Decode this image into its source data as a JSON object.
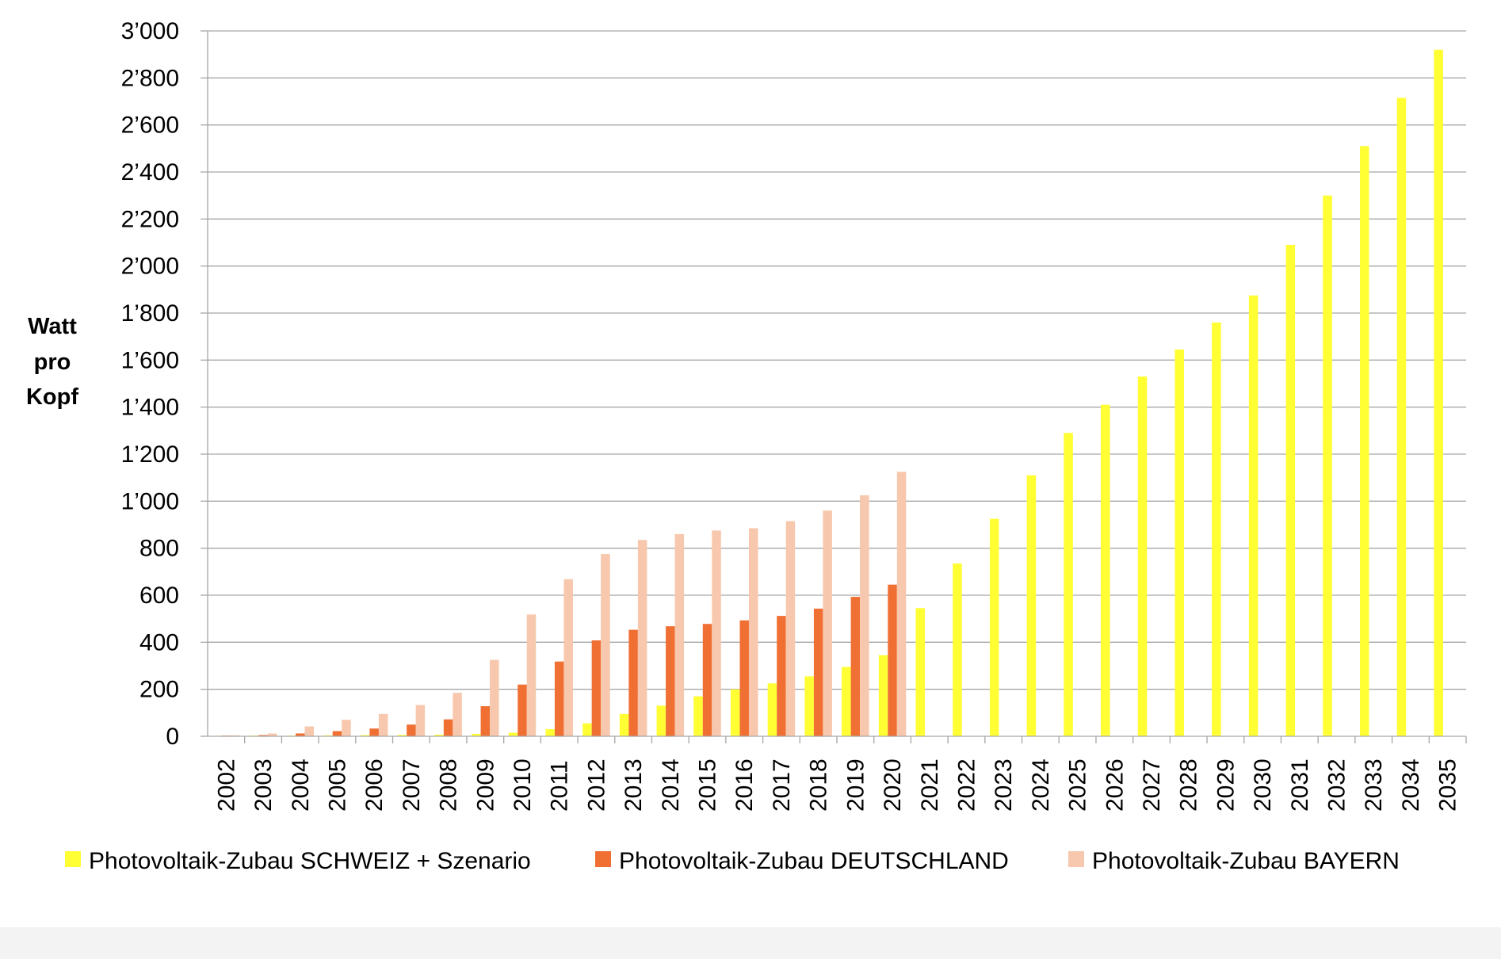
{
  "chart_data": {
    "type": "bar",
    "ylabel": [
      "Watt",
      "pro",
      "Kopf"
    ],
    "ylim": [
      0,
      3000
    ],
    "yticks": [
      0,
      200,
      400,
      600,
      800,
      1000,
      1200,
      1400,
      1600,
      1800,
      2000,
      2200,
      2400,
      2600,
      2800,
      3000
    ],
    "ytick_labels": [
      "0",
      "200",
      "400",
      "600",
      "800",
      "1’000",
      "1’200",
      "1’400",
      "1’600",
      "1’800",
      "2’000",
      "2’200",
      "2’400",
      "2’600",
      "2’800",
      "3’000"
    ],
    "grid": true,
    "legend": "bottom",
    "categories": [
      "2002",
      "2003",
      "2004",
      "2005",
      "2006",
      "2007",
      "2008",
      "2009",
      "2010",
      "2011",
      "2012",
      "2013",
      "2014",
      "2015",
      "2016",
      "2017",
      "2018",
      "2019",
      "2020",
      "2021",
      "2022",
      "2023",
      "2024",
      "2025",
      "2026",
      "2027",
      "2028",
      "2029",
      "2030",
      "2031",
      "2032",
      "2033",
      "2034",
      "2035"
    ],
    "series": [
      {
        "name": "Photovoltaik-Zubau SCHWEIZ + Szenario",
        "color": "#ffff33",
        "values": [
          2,
          3,
          3,
          4,
          5,
          6,
          7,
          10,
          15,
          30,
          55,
          95,
          130,
          170,
          200,
          225,
          255,
          295,
          345,
          545,
          735,
          925,
          1110,
          1290,
          1410,
          1530,
          1645,
          1760,
          1875,
          2090,
          2300,
          2510,
          2715,
          2920
        ]
      },
      {
        "name": "Photovoltaik-Zubau DEUTSCHLAND",
        "color": "#f07034",
        "values": [
          3,
          5,
          12,
          22,
          33,
          50,
          72,
          128,
          220,
          318,
          408,
          453,
          468,
          478,
          493,
          512,
          543,
          593,
          645,
          null,
          null,
          null,
          null,
          null,
          null,
          null,
          null,
          null,
          null,
          null,
          null,
          null,
          null,
          null
        ]
      },
      {
        "name": "Photovoltaik-Zubau BAYERN",
        "color": "#f7c8ad",
        "values": [
          4,
          12,
          42,
          70,
          95,
          133,
          185,
          325,
          518,
          668,
          775,
          835,
          860,
          875,
          885,
          915,
          960,
          1025,
          1125,
          null,
          null,
          null,
          null,
          null,
          null,
          null,
          null,
          null,
          null,
          null,
          null,
          null,
          null,
          null
        ]
      }
    ]
  }
}
